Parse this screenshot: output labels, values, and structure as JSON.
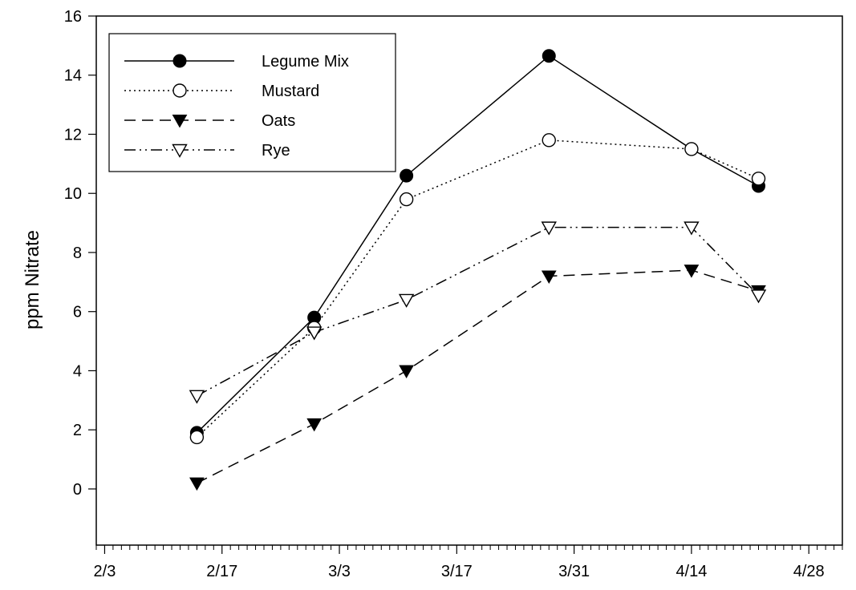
{
  "chart_data": {
    "type": "line",
    "title": "",
    "xlabel": "",
    "ylabel": "ppm Nitrate",
    "x_axis": {
      "kind": "date",
      "ticks": [
        "2/3",
        "2/17",
        "3/3",
        "3/17",
        "3/31",
        "4/14",
        "4/28"
      ],
      "minor_tick_step_days": 1,
      "range": [
        "2/2",
        "5/2"
      ]
    },
    "y_axis": {
      "ticks": [
        "0",
        "2",
        "4",
        "6",
        "8",
        "10",
        "12",
        "14",
        "16"
      ],
      "range": [
        -1.9,
        16
      ]
    },
    "grid": false,
    "legend_position": "top-left",
    "series": [
      {
        "name": "Legume Mix",
        "line_style": "solid",
        "marker": "filled-circle",
        "points": [
          {
            "x": "2/14",
            "y": 1.9
          },
          {
            "x": "2/28",
            "y": 5.8
          },
          {
            "x": "3/11",
            "y": 10.6
          },
          {
            "x": "3/28",
            "y": 14.65
          },
          {
            "x": "4/14",
            "y": 11.5
          },
          {
            "x": "4/22",
            "y": 10.25
          }
        ]
      },
      {
        "name": "Mustard",
        "line_style": "dotted",
        "marker": "open-circle",
        "points": [
          {
            "x": "2/14",
            "y": 1.75
          },
          {
            "x": "2/28",
            "y": 5.45
          },
          {
            "x": "3/11",
            "y": 9.8
          },
          {
            "x": "3/28",
            "y": 11.8
          },
          {
            "x": "4/14",
            "y": 11.5
          },
          {
            "x": "4/22",
            "y": 10.5
          }
        ]
      },
      {
        "name": "Oats",
        "line_style": "dashed",
        "marker": "filled-triangle-down",
        "points": [
          {
            "x": "2/14",
            "y": 0.2
          },
          {
            "x": "2/28",
            "y": 2.2
          },
          {
            "x": "3/11",
            "y": 4.0
          },
          {
            "x": "3/28",
            "y": 7.2
          },
          {
            "x": "4/14",
            "y": 7.4
          },
          {
            "x": "4/22",
            "y": 6.7
          }
        ]
      },
      {
        "name": "Rye",
        "line_style": "dash-dot-dot",
        "marker": "open-triangle-down",
        "points": [
          {
            "x": "2/14",
            "y": 3.15
          },
          {
            "x": "2/28",
            "y": 5.3
          },
          {
            "x": "3/11",
            "y": 6.4
          },
          {
            "x": "3/28",
            "y": 8.85
          },
          {
            "x": "4/14",
            "y": 8.85
          },
          {
            "x": "4/22",
            "y": 6.55
          }
        ]
      }
    ]
  }
}
